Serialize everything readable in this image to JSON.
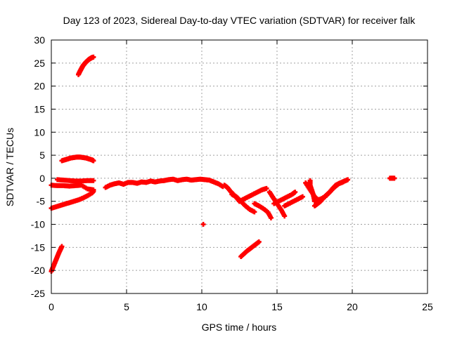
{
  "chart_data": {
    "type": "scatter",
    "title": "Day 123 of 2023, Sidereal Day-to-day VTEC variation (SDTVAR) for receiver falk",
    "xlabel": "GPS time / hours",
    "ylabel": "SDTVAR / TECUs",
    "xlim": [
      0,
      25
    ],
    "ylim": [
      -25,
      30
    ],
    "xticks": [
      0,
      5,
      10,
      15,
      20,
      25
    ],
    "yticks": [
      -25,
      -20,
      -15,
      -10,
      -5,
      0,
      5,
      10,
      15,
      20,
      25,
      30
    ],
    "grid": true,
    "marker_color": "#ff0000",
    "series": [
      {
        "points": [
          [
            1.8,
            22.5
          ],
          [
            1.9,
            23.2
          ],
          [
            2.0,
            23.8
          ],
          [
            2.1,
            24.4
          ],
          [
            2.2,
            24.8
          ],
          [
            2.3,
            25.2
          ],
          [
            2.4,
            25.5
          ],
          [
            2.5,
            25.8
          ],
          [
            2.6,
            26.0
          ],
          [
            2.7,
            26.2
          ],
          [
            2.8,
            26.3
          ]
        ]
      },
      {
        "points": [
          [
            0.7,
            3.8
          ],
          [
            0.9,
            4.0
          ],
          [
            1.1,
            4.2
          ],
          [
            1.3,
            4.4
          ],
          [
            1.5,
            4.5
          ],
          [
            1.7,
            4.6
          ],
          [
            1.9,
            4.6
          ],
          [
            2.1,
            4.5
          ],
          [
            2.3,
            4.4
          ],
          [
            2.5,
            4.2
          ],
          [
            2.7,
            4.0
          ],
          [
            2.8,
            3.8
          ]
        ]
      },
      {
        "points": [
          [
            0.4,
            -0.3
          ],
          [
            0.8,
            -0.4
          ],
          [
            1.2,
            -0.5
          ],
          [
            1.6,
            -0.6
          ],
          [
            2.0,
            -0.6
          ],
          [
            2.4,
            -0.5
          ],
          [
            2.8,
            -0.5
          ]
        ]
      },
      {
        "points": [
          [
            0.0,
            -1.5
          ],
          [
            0.4,
            -1.6
          ],
          [
            0.8,
            -1.6
          ],
          [
            1.2,
            -1.7
          ],
          [
            1.6,
            -1.6
          ],
          [
            2.0,
            -1.5
          ],
          [
            2.4,
            -2.3
          ],
          [
            2.8,
            -2.5
          ]
        ]
      },
      {
        "points": [
          [
            0.0,
            -6.5
          ],
          [
            0.3,
            -6.2
          ],
          [
            0.6,
            -5.9
          ],
          [
            0.9,
            -5.6
          ],
          [
            1.2,
            -5.3
          ],
          [
            1.5,
            -5.0
          ],
          [
            1.8,
            -4.7
          ],
          [
            2.1,
            -4.3
          ],
          [
            2.4,
            -3.8
          ],
          [
            2.7,
            -3.2
          ],
          [
            2.8,
            -2.8
          ]
        ]
      },
      {
        "points": [
          [
            0.0,
            -20.2
          ],
          [
            0.1,
            -19.4
          ],
          [
            0.2,
            -18.6
          ],
          [
            0.3,
            -17.8
          ],
          [
            0.4,
            -17.0
          ],
          [
            0.5,
            -16.2
          ],
          [
            0.6,
            -15.5
          ],
          [
            0.7,
            -14.8
          ]
        ]
      },
      {
        "points": [
          [
            3.6,
            -2.0
          ],
          [
            3.9,
            -1.5
          ],
          [
            4.2,
            -1.2
          ],
          [
            4.5,
            -1.0
          ],
          [
            4.8,
            -1.3
          ],
          [
            5.1,
            -0.9
          ],
          [
            5.4,
            -0.9
          ],
          [
            5.7,
            -1.1
          ],
          [
            6.0,
            -0.8
          ],
          [
            6.3,
            -0.9
          ],
          [
            6.6,
            -0.6
          ],
          [
            6.9,
            -0.8
          ],
          [
            7.2,
            -0.6
          ],
          [
            7.5,
            -0.5
          ],
          [
            7.8,
            -0.3
          ],
          [
            8.1,
            -0.2
          ],
          [
            8.4,
            -0.5
          ],
          [
            8.7,
            -0.3
          ],
          [
            9.0,
            -0.2
          ],
          [
            9.3,
            -0.4
          ],
          [
            9.6,
            -0.3
          ],
          [
            9.9,
            -0.2
          ],
          [
            10.2,
            -0.3
          ],
          [
            10.5,
            -0.4
          ],
          [
            10.8,
            -0.8
          ],
          [
            11.1,
            -1.2
          ],
          [
            11.4,
            -1.8
          ]
        ]
      },
      {
        "points": [
          [
            11.5,
            -1.5
          ],
          [
            11.7,
            -2.0
          ],
          [
            11.9,
            -2.8
          ],
          [
            12.1,
            -3.5
          ],
          [
            12.3,
            -4.2
          ],
          [
            12.5,
            -5.0
          ]
        ]
      },
      {
        "points": [
          [
            12.0,
            -3.5
          ],
          [
            12.3,
            -4.0
          ],
          [
            12.6,
            -5.0
          ],
          [
            12.9,
            -6.0
          ],
          [
            13.2,
            -6.8
          ],
          [
            13.5,
            -7.3
          ]
        ]
      },
      {
        "points": [
          [
            12.5,
            -5.0
          ],
          [
            12.8,
            -4.5
          ],
          [
            13.1,
            -4.0
          ],
          [
            13.4,
            -3.5
          ],
          [
            13.7,
            -3.0
          ],
          [
            14.0,
            -2.5
          ],
          [
            14.3,
            -2.2
          ]
        ]
      },
      {
        "points": [
          [
            13.5,
            -5.5
          ],
          [
            13.8,
            -6.0
          ],
          [
            14.1,
            -6.6
          ],
          [
            14.4,
            -7.4
          ],
          [
            14.6,
            -8.6
          ]
        ]
      },
      {
        "points": [
          [
            14.5,
            -3.0
          ],
          [
            14.7,
            -4.0
          ],
          [
            14.9,
            -5.0
          ],
          [
            15.1,
            -6.0
          ],
          [
            15.3,
            -7.0
          ],
          [
            15.5,
            -8.2
          ]
        ]
      },
      {
        "points": [
          [
            14.8,
            -5.5
          ],
          [
            15.1,
            -5.0
          ],
          [
            15.4,
            -4.5
          ],
          [
            15.7,
            -4.0
          ],
          [
            16.0,
            -3.5
          ],
          [
            16.2,
            -3.0
          ]
        ]
      },
      {
        "points": [
          [
            15.5,
            -6.0
          ],
          [
            15.8,
            -5.5
          ],
          [
            16.1,
            -5.0
          ],
          [
            16.4,
            -4.5
          ],
          [
            16.7,
            -4.0
          ]
        ]
      },
      {
        "points": [
          [
            16.9,
            -1.0
          ],
          [
            17.1,
            -2.0
          ],
          [
            17.3,
            -3.0
          ],
          [
            17.5,
            -4.0
          ],
          [
            17.7,
            -4.6
          ]
        ]
      },
      {
        "points": [
          [
            17.2,
            -0.5
          ],
          [
            17.2,
            -1.5
          ],
          [
            17.3,
            -2.5
          ],
          [
            17.4,
            -3.5
          ],
          [
            17.5,
            -5.0
          ]
        ]
      },
      {
        "points": [
          [
            17.5,
            -6.0
          ],
          [
            17.7,
            -5.5
          ],
          [
            17.9,
            -5.0
          ],
          [
            18.1,
            -4.2
          ],
          [
            18.3,
            -3.6
          ],
          [
            18.5,
            -3.0
          ],
          [
            18.7,
            -2.2
          ],
          [
            18.9,
            -1.5
          ],
          [
            19.2,
            -1.0
          ],
          [
            19.5,
            -0.6
          ],
          [
            19.7,
            -0.3
          ]
        ]
      },
      {
        "points": [
          [
            17.6,
            -4.8
          ],
          [
            17.9,
            -4.5
          ],
          [
            18.2,
            -4.0
          ],
          [
            18.5,
            -3.0
          ],
          [
            18.8,
            -2.0
          ],
          [
            19.1,
            -1.2
          ],
          [
            19.4,
            -0.8
          ]
        ]
      },
      {
        "points": [
          [
            12.6,
            -17.0
          ],
          [
            12.8,
            -16.4
          ],
          [
            13.0,
            -15.8
          ],
          [
            13.2,
            -15.3
          ],
          [
            13.4,
            -14.8
          ],
          [
            13.6,
            -14.3
          ],
          [
            13.8,
            -13.8
          ]
        ]
      },
      {
        "points": [
          [
            22.5,
            0.0
          ],
          [
            22.6,
            0.0
          ],
          [
            22.7,
            0.0
          ],
          [
            22.8,
            0.0
          ]
        ]
      },
      {
        "points": [
          [
            10.1,
            -10.0
          ]
        ]
      }
    ]
  }
}
